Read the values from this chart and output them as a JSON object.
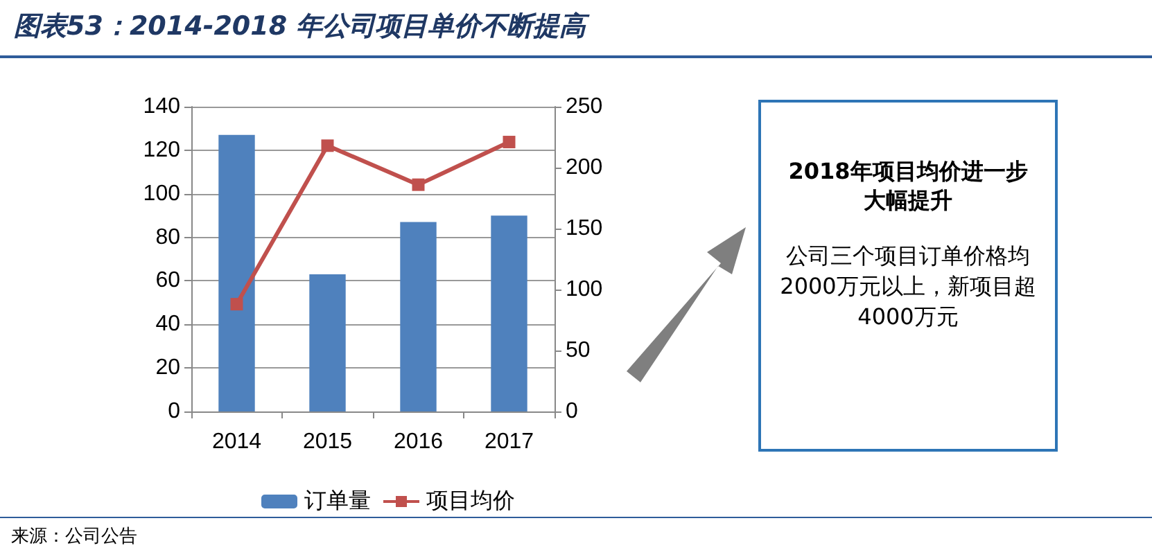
{
  "chart_data": {
    "type": "bar",
    "title": "图表53：2014-2018 年公司项目单价不断提高",
    "categories": [
      "2014",
      "2015",
      "2016",
      "2017"
    ],
    "series": [
      {
        "name": "订单量",
        "color": "#4f81bd",
        "values": [
          127,
          63,
          87,
          90
        ]
      },
      {
        "name": "项目均价",
        "type": "line",
        "axis": "y2",
        "color": "#c0504d",
        "values": [
          88,
          218,
          186,
          221
        ],
        "marker": "square"
      }
    ],
    "ylim": [
      0,
      140
    ],
    "yticks": [
      0,
      20,
      40,
      60,
      80,
      100,
      120,
      140
    ],
    "y2lim": [
      0,
      250
    ],
    "y2ticks": [
      0,
      50,
      100,
      150,
      200,
      250
    ],
    "grid": "y",
    "legend": "bottom",
    "annotations": [
      "2018年项目均价进一步大幅提升",
      "公司三个项目订单价格均2000万元以上，新项目超4000万元",
      "来源：公司公告"
    ]
  }
}
